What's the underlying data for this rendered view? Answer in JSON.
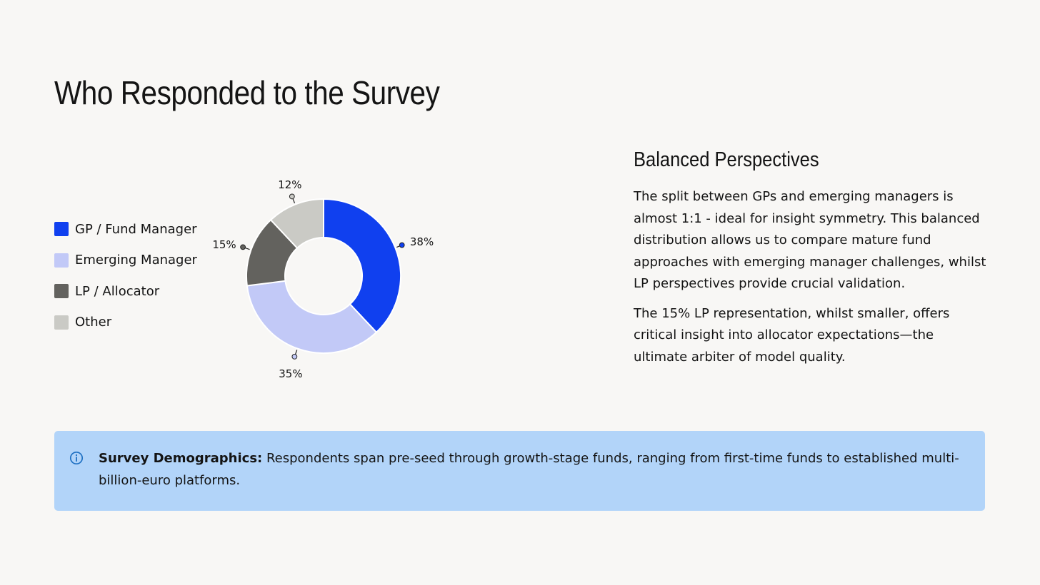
{
  "header": {
    "title": "Who Responded to the Survey"
  },
  "chart_data": {
    "type": "pie",
    "variant": "donut",
    "categories": [
      "GP / Fund Manager",
      "Emerging Manager",
      "LP / Allocator",
      "Other"
    ],
    "values": [
      38,
      35,
      15,
      12
    ],
    "labels": [
      "38%",
      "35%",
      "15%",
      "12%"
    ],
    "colors": [
      "#1040ef",
      "#c2c9f7",
      "#63625e",
      "#cacac5"
    ],
    "legend_position": "left"
  },
  "side": {
    "title": "Balanced Perspectives",
    "paragraph_1": "The split between GPs and emerging managers is almost 1:1 - ideal for insight symmetry. This balanced distribution allows us to compare mature fund approaches with emerging manager challenges, whilst LP perspectives provide crucial validation.",
    "paragraph_2": "The 15% LP representation, whilst smaller, offers critical insight into allocator expectations—the ultimate arbiter of model quality."
  },
  "callout": {
    "icon": "info-icon",
    "label": "Survey Demographics:",
    "text": " Respondents span pre-seed through growth-stage funds, ranging from first-time funds to established multi-billion-euro platforms.",
    "background": "#b2d4f9"
  }
}
